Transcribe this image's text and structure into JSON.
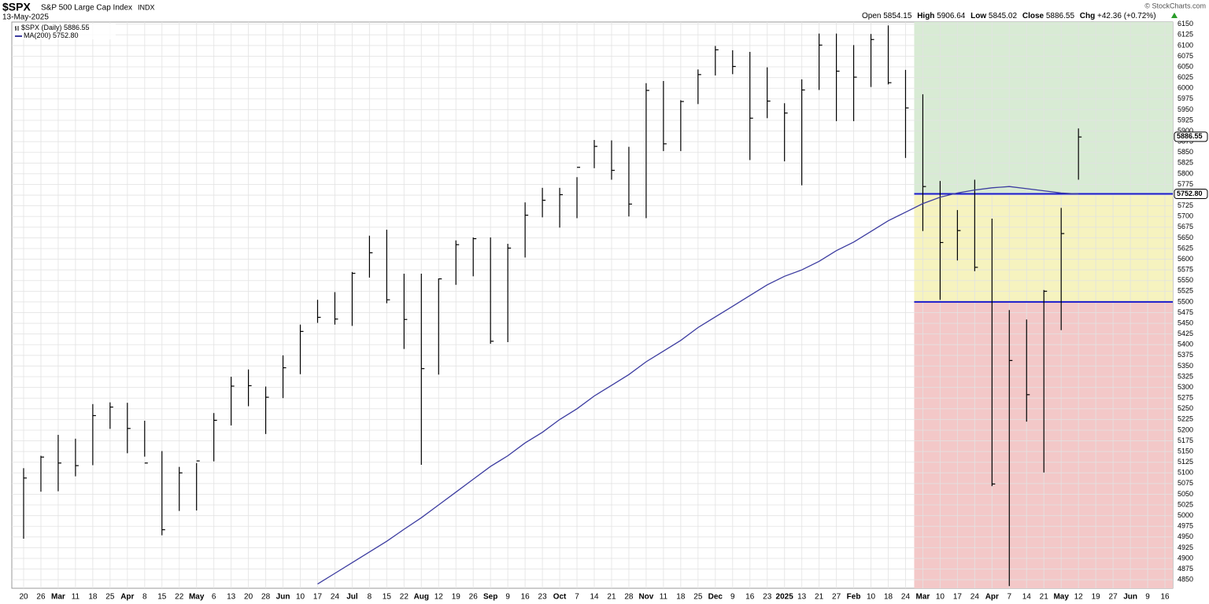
{
  "chart_data": {
    "type": "ohlc",
    "title": "$SPX",
    "subtitle": "S&P 500 Large Cap Index",
    "exchange": "INDX",
    "date": "13-May-2025",
    "quote": {
      "open_label": "Open",
      "open": 5854.15,
      "high_label": "High",
      "high": 5906.64,
      "low_label": "Low",
      "low": 5845.02,
      "close_label": "Close",
      "close": 5886.55,
      "change_label": "Chg",
      "change": {
        "value": 42.36,
        "label": "+42.36"
      },
      "change_pct": {
        "value": 0.72,
        "label": "(+0.72%)"
      }
    },
    "watermark": "© StockCharts.com",
    "categories": [
      "20",
      "26",
      "Mar",
      "11",
      "18",
      "25",
      "Apr",
      "8",
      "15",
      "22",
      "May",
      "6",
      "13",
      "20",
      "28",
      "Jun",
      "10",
      "17",
      "24",
      "Jul",
      "8",
      "15",
      "22",
      "Aug",
      "12",
      "19",
      "26",
      "Sep",
      "9",
      "16",
      "23",
      "Oct",
      "7",
      "14",
      "21",
      "28",
      "Nov",
      "11",
      "18",
      "25",
      "Dec",
      "9",
      "16",
      "23",
      "2025",
      "13",
      "21",
      "27",
      "Feb",
      "10",
      "18",
      "24",
      "Mar",
      "10",
      "17",
      "24",
      "Apr",
      "7",
      "14",
      "21",
      "May",
      "12",
      "19",
      "27",
      "Jun",
      "9",
      "16"
    ],
    "series": [
      {
        "name": "$SPX (Daily)",
        "color": "#000000",
        "last": 5886.55,
        "high": [
          5111,
          5140,
          5189,
          5180,
          5261,
          5265,
          5264,
          5222,
          5151,
          5114,
          5123,
          5240,
          5325,
          5342,
          5302,
          5375,
          5447,
          5505,
          5523,
          5570,
          5655,
          5669,
          5566,
          5566,
          5555,
          5644,
          5651,
          5651,
          5636,
          5733,
          5767,
          5767,
          5792,
          5879,
          5878,
          5863,
          6012,
          6017,
          5972,
          6044,
          6099,
          6089,
          6085,
          6049,
          5965,
          6021,
          6128,
          6128,
          6101,
          6127,
          6147,
          6043,
          5986,
          5783,
          5715,
          5786,
          5695,
          5481,
          5459,
          5528,
          5720,
          5906,
          null,
          null,
          null,
          null,
          null
        ],
        "low": [
          4946,
          5056,
          5057,
          5092,
          5118,
          5203,
          5146,
          5138,
          4954,
          5011,
          5012,
          5127,
          5211,
          5256,
          5191,
          5275,
          5331,
          5451,
          5447,
          5444,
          5557,
          5497,
          5390,
          5119,
          5330,
          5540,
          5560,
          5402,
          5406,
          5604,
          5698,
          5674,
          5696,
          5813,
          5786,
          5700,
          5696,
          5853,
          5853,
          5963,
          6030,
          6033,
          5832,
          5930,
          5829,
          5773,
          5996,
          5923,
          5923,
          6003,
          6009,
          5837,
          5666,
          5505,
          5597,
          5572,
          5069,
          4835,
          5220,
          5101,
          5434,
          5786,
          null,
          null,
          null,
          null,
          null
        ],
        "close": [
          5088,
          5137,
          5123,
          5117,
          5234,
          5254,
          5204,
          5123,
          4967,
          5100,
          5128,
          5223,
          5303,
          5304,
          5277,
          5346,
          5431,
          5464,
          5460,
          5567,
          5615,
          5505,
          5459,
          5344,
          5554,
          5634,
          5648,
          5408,
          5626,
          5703,
          5738,
          5751,
          5815,
          5864,
          5808,
          5729,
          5995,
          5870,
          5969,
          6032,
          6090,
          6051,
          5930,
          5970,
          5942,
          5996,
          6101,
          6040,
          6026,
          6114,
          6013,
          5954,
          5770,
          5639,
          5667,
          5581,
          5074,
          5363,
          5283,
          5525,
          5660,
          5886,
          null,
          null,
          null,
          null,
          null
        ]
      },
      {
        "name": "MA(200)",
        "type": "line",
        "color": "#3c3ca0",
        "last": {
          "value": 5752.8,
          "label": "5752.80"
        },
        "values": [
          null,
          null,
          null,
          null,
          null,
          null,
          null,
          null,
          null,
          null,
          null,
          null,
          null,
          null,
          null,
          null,
          null,
          4840,
          4865,
          4890,
          4915,
          4940,
          4968,
          4995,
          5025,
          5055,
          5085,
          5115,
          5140,
          5170,
          5195,
          5225,
          5250,
          5280,
          5305,
          5330,
          5360,
          5385,
          5410,
          5440,
          5465,
          5490,
          5515,
          5540,
          5560,
          5575,
          5595,
          5620,
          5640,
          5665,
          5690,
          5710,
          5730,
          5745,
          5755,
          5762,
          5767,
          5770,
          5765,
          5760,
          5755,
          5752.8,
          null,
          null,
          null,
          null,
          null
        ]
      }
    ],
    "levels": [
      {
        "value": 5752.8,
        "color": "#1a1acc"
      },
      {
        "value": 5500,
        "color": "#1a1acc"
      }
    ],
    "zones": [
      {
        "from": 5752.8,
        "to": 6155,
        "color": "#d8ebd4"
      },
      {
        "from": 5500,
        "to": 5752.8,
        "color": "#f6f3bf"
      },
      {
        "from": 4830,
        "to": 5500,
        "color": "#f3c8c8"
      }
    ],
    "zone_start": 52,
    "ylim": [
      4830,
      6155
    ],
    "yticks": [
      4850,
      4875,
      4900,
      4925,
      4950,
      4975,
      5000,
      5025,
      5050,
      5075,
      5100,
      5125,
      5150,
      5175,
      5200,
      5225,
      5250,
      5275,
      5300,
      5325,
      5350,
      5375,
      5400,
      5425,
      5450,
      5475,
      5500,
      5525,
      5550,
      5575,
      5600,
      5625,
      5650,
      5675,
      5700,
      5725,
      5750,
      5775,
      5800,
      5825,
      5850,
      5875,
      5900,
      5925,
      5950,
      5975,
      6000,
      6025,
      6050,
      6075,
      6100,
      6125,
      6150
    ],
    "grid": true
  }
}
